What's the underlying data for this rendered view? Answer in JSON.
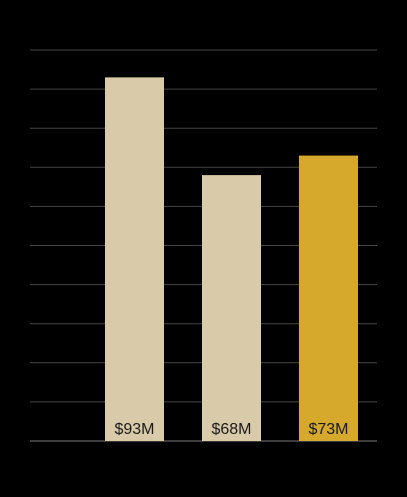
{
  "chart_data": {
    "type": "bar",
    "values": [
      93,
      68,
      73
    ],
    "value_labels": [
      "$93M",
      "$68M",
      "$73M"
    ],
    "colors": [
      "#d9caaa",
      "#d9caaa",
      "#d6a92c"
    ],
    "ylim": [
      0,
      100
    ],
    "yticks": [
      0,
      10,
      20,
      30,
      40,
      50,
      60,
      70,
      80,
      90,
      100
    ],
    "grid": true
  }
}
